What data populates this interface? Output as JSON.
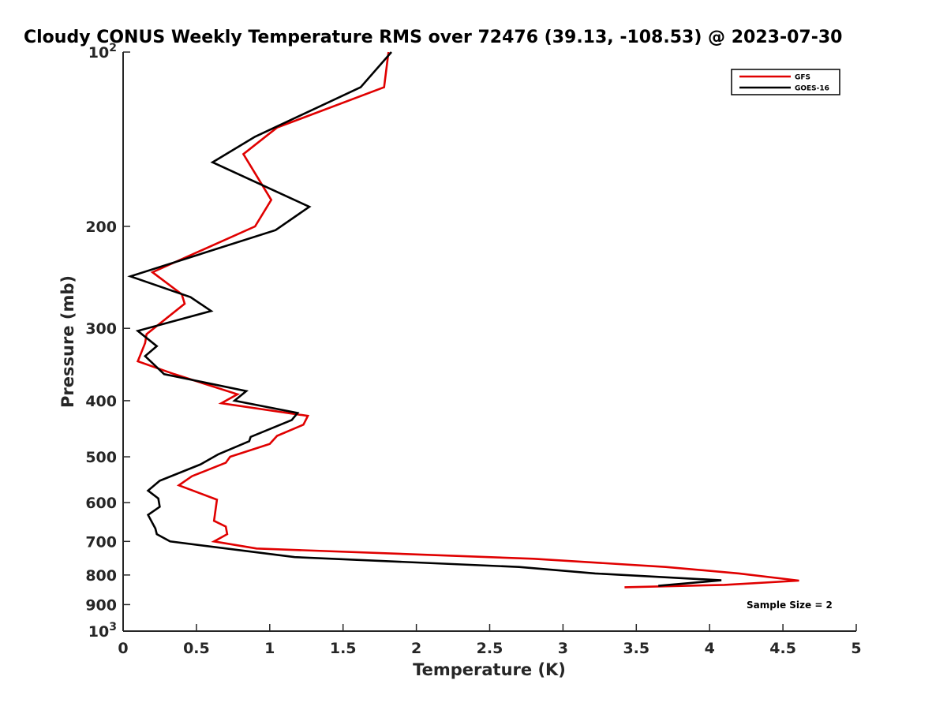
{
  "chart_data": {
    "type": "line",
    "title": "Cloudy CONUS Weekly Temperature RMS over 72476 (39.13, -108.53) @ 2023-07-30",
    "xlabel": "Temperature (K)",
    "ylabel": "Pressure (mb)",
    "xlim": [
      0,
      5
    ],
    "ylim": [
      100,
      1000
    ],
    "y_scale": "log",
    "y_reversed": true,
    "grid": false,
    "legend_position": "top-right",
    "x_ticks": [
      0,
      0.5,
      1,
      1.5,
      2,
      2.5,
      3,
      3.5,
      4,
      4.5,
      5
    ],
    "x_tick_labels": [
      "0",
      "0.5",
      "1",
      "1.5",
      "2",
      "2.5",
      "3",
      "3.5",
      "4",
      "4.5",
      "5"
    ],
    "y_ticks": [
      100,
      200,
      300,
      400,
      500,
      600,
      700,
      800,
      900,
      1000
    ],
    "y_tick_labels": [
      {
        "base": "10",
        "exp": "2"
      },
      {
        "base": "200",
        "exp": ""
      },
      {
        "base": "300",
        "exp": ""
      },
      {
        "base": "400",
        "exp": ""
      },
      {
        "base": "500",
        "exp": ""
      },
      {
        "base": "600",
        "exp": ""
      },
      {
        "base": "700",
        "exp": ""
      },
      {
        "base": "800",
        "exp": ""
      },
      {
        "base": "900",
        "exp": ""
      },
      {
        "base": "10",
        "exp": "3"
      }
    ],
    "annotation": "Sample Size = 2",
    "series": [
      {
        "name": "GFS",
        "color": "#e00000",
        "points": [
          [
            1.81,
            100
          ],
          [
            1.78,
            115
          ],
          [
            1.05,
            135
          ],
          [
            0.82,
            150
          ],
          [
            1.01,
            180
          ],
          [
            0.9,
            200
          ],
          [
            0.2,
            240
          ],
          [
            0.4,
            262
          ],
          [
            0.42,
            272
          ],
          [
            0.16,
            307
          ],
          [
            0.15,
            318
          ],
          [
            0.1,
            342
          ],
          [
            0.35,
            360
          ],
          [
            0.78,
            390
          ],
          [
            0.67,
            404
          ],
          [
            1.26,
            425
          ],
          [
            1.23,
            440
          ],
          [
            1.05,
            460
          ],
          [
            1.0,
            475
          ],
          [
            0.73,
            500
          ],
          [
            0.7,
            512
          ],
          [
            0.47,
            540
          ],
          [
            0.38,
            560
          ],
          [
            0.64,
            593
          ],
          [
            0.62,
            645
          ],
          [
            0.7,
            660
          ],
          [
            0.71,
            680
          ],
          [
            0.62,
            700
          ],
          [
            0.91,
            720
          ],
          [
            2.8,
            750
          ],
          [
            3.7,
            775
          ],
          [
            4.2,
            795
          ],
          [
            4.61,
            818
          ],
          [
            4.1,
            832
          ],
          [
            3.42,
            840
          ]
        ]
      },
      {
        "name": "GOES-16",
        "color": "#000000",
        "points": [
          [
            1.83,
            100
          ],
          [
            1.62,
            115
          ],
          [
            0.9,
            140
          ],
          [
            0.61,
            155
          ],
          [
            1.27,
            185
          ],
          [
            1.04,
            203
          ],
          [
            0.05,
            244
          ],
          [
            0.46,
            265
          ],
          [
            0.6,
            280
          ],
          [
            0.1,
            303
          ],
          [
            0.23,
            322
          ],
          [
            0.15,
            335
          ],
          [
            0.28,
            360
          ],
          [
            0.84,
            385
          ],
          [
            0.76,
            400
          ],
          [
            1.19,
            420
          ],
          [
            1.15,
            432
          ],
          [
            0.87,
            462
          ],
          [
            0.86,
            470
          ],
          [
            0.65,
            495
          ],
          [
            0.53,
            515
          ],
          [
            0.25,
            550
          ],
          [
            0.17,
            572
          ],
          [
            0.24,
            590
          ],
          [
            0.25,
            610
          ],
          [
            0.17,
            630
          ],
          [
            0.22,
            665
          ],
          [
            0.23,
            680
          ],
          [
            0.32,
            700
          ],
          [
            1.17,
            745
          ],
          [
            2.7,
            775
          ],
          [
            3.22,
            795
          ],
          [
            4.08,
            817
          ],
          [
            3.65,
            835
          ]
        ]
      }
    ]
  }
}
